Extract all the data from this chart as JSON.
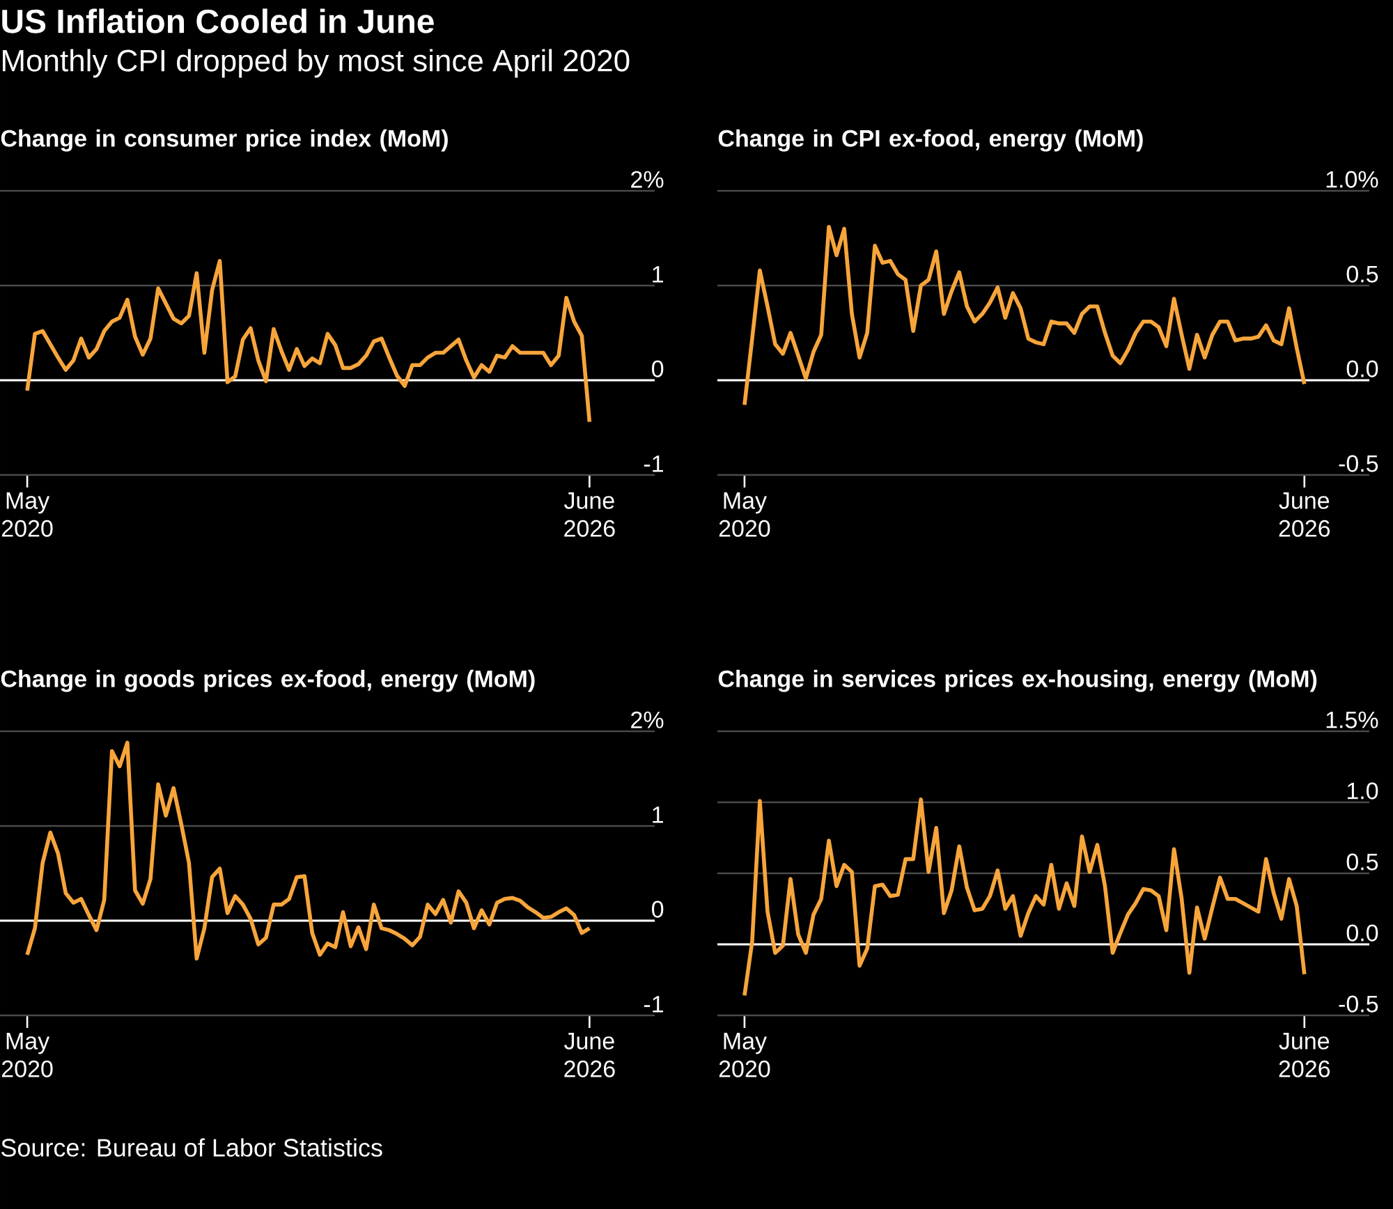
{
  "chart_data": [
    {
      "type": "other",
      "title": "US Inflation Cooled in June",
      "subtitle": "Monthly CPI dropped by most since April 2020",
      "annotations": [
        "Source: Bureau of Labor Statistics"
      ]
    },
    {
      "type": "line",
      "title": "Change in consumer price index (MoM)",
      "grid": "y",
      "marker": "none",
      "line_style": "solid",
      "color": "#f7a53b",
      "x": [
        "2020-05",
        "2020-06",
        "2020-07",
        "2020-08",
        "2020-09",
        "2020-10",
        "2020-11",
        "2020-12",
        "2021-01",
        "2021-02",
        "2021-03",
        "2021-04",
        "2021-05",
        "2021-06",
        "2021-07",
        "2021-08",
        "2021-09",
        "2021-10",
        "2021-11",
        "2021-12",
        "2022-01",
        "2022-02",
        "2022-03",
        "2022-04",
        "2022-05",
        "2022-06",
        "2022-07",
        "2022-08",
        "2022-09",
        "2022-10",
        "2022-11",
        "2022-12",
        "2023-01",
        "2023-02",
        "2023-03",
        "2023-04",
        "2023-05",
        "2023-06",
        "2023-07",
        "2023-08",
        "2023-09",
        "2023-10",
        "2023-11",
        "2023-12",
        "2024-01",
        "2024-02",
        "2024-03",
        "2024-04",
        "2024-05",
        "2024-06",
        "2024-07",
        "2024-08",
        "2024-09",
        "2024-10",
        "2024-11",
        "2024-12",
        "2025-01",
        "2025-02",
        "2025-03",
        "2025-04",
        "2025-05",
        "2025-06",
        "2025-07",
        "2025-08",
        "2025-09",
        "2025-10",
        "2025-11",
        "2025-12",
        "2026-01",
        "2026-02",
        "2026-03",
        "2026-04",
        "2026-05",
        "2026-06"
      ],
      "values": [
        -0.11,
        0.49,
        0.52,
        0.38,
        0.24,
        0.11,
        0.21,
        0.44,
        0.24,
        0.33,
        0.52,
        0.62,
        0.66,
        0.85,
        0.46,
        0.27,
        0.44,
        0.97,
        0.81,
        0.65,
        0.6,
        0.68,
        1.13,
        0.29,
        0.95,
        1.26,
        -0.02,
        0.04,
        0.43,
        0.55,
        0.21,
        -0.01,
        0.54,
        0.31,
        0.11,
        0.33,
        0.15,
        0.23,
        0.18,
        0.49,
        0.37,
        0.13,
        0.13,
        0.17,
        0.26,
        0.41,
        0.44,
        0.24,
        0.05,
        -0.06,
        0.16,
        0.16,
        0.24,
        0.29,
        0.29,
        0.36,
        0.43,
        0.21,
        0.03,
        0.16,
        0.09,
        0.26,
        0.24,
        0.36,
        0.29,
        0.29,
        0.29,
        0.29,
        0.16,
        0.26,
        0.87,
        0.62,
        0.47,
        -0.44
      ],
      "xlim": [
        "2020-01-15",
        "2027-02-15"
      ],
      "xticks": [
        {
          "value": "2020-05",
          "label": "May 2020"
        },
        {
          "value": "2026-06",
          "label": "June 2026"
        }
      ],
      "ylim": [
        -1,
        2
      ],
      "yticks": [
        -1,
        0,
        1,
        {
          "value": 2,
          "label": "2%"
        }
      ],
      "ref_lines": [
        {
          "axis": "y",
          "value": 0,
          "color": "#ffffff"
        }
      ]
    },
    {
      "type": "line",
      "title": "Change in CPI ex-food, energy (MoM)",
      "grid": "y",
      "marker": "none",
      "line_style": "solid",
      "color": "#f7a53b",
      "x": [
        "2020-05",
        "2020-06",
        "2020-07",
        "2020-08",
        "2020-09",
        "2020-10",
        "2020-11",
        "2020-12",
        "2021-01",
        "2021-02",
        "2021-03",
        "2021-04",
        "2021-05",
        "2021-06",
        "2021-07",
        "2021-08",
        "2021-09",
        "2021-10",
        "2021-11",
        "2021-12",
        "2022-01",
        "2022-02",
        "2022-03",
        "2022-04",
        "2022-05",
        "2022-06",
        "2022-07",
        "2022-08",
        "2022-09",
        "2022-10",
        "2022-11",
        "2022-12",
        "2023-01",
        "2023-02",
        "2023-03",
        "2023-04",
        "2023-05",
        "2023-06",
        "2023-07",
        "2023-08",
        "2023-09",
        "2023-10",
        "2023-11",
        "2023-12",
        "2024-01",
        "2024-02",
        "2024-03",
        "2024-04",
        "2024-05",
        "2024-06",
        "2024-07",
        "2024-08",
        "2024-09",
        "2024-10",
        "2024-11",
        "2024-12",
        "2025-01",
        "2025-02",
        "2025-03",
        "2025-04",
        "2025-05",
        "2025-06",
        "2025-07",
        "2025-08",
        "2025-09",
        "2025-10",
        "2025-11",
        "2025-12",
        "2026-01",
        "2026-02",
        "2026-03",
        "2026-04",
        "2026-05",
        "2026-06"
      ],
      "values": [
        -0.13,
        0.22,
        0.58,
        0.39,
        0.19,
        0.14,
        0.25,
        0.13,
        0.01,
        0.15,
        0.24,
        0.81,
        0.66,
        0.8,
        0.35,
        0.12,
        0.25,
        0.71,
        0.62,
        0.63,
        0.56,
        0.53,
        0.26,
        0.5,
        0.53,
        0.68,
        0.35,
        0.47,
        0.57,
        0.39,
        0.31,
        0.35,
        0.41,
        0.49,
        0.33,
        0.46,
        0.38,
        0.22,
        0.2,
        0.19,
        0.31,
        0.3,
        0.3,
        0.25,
        0.35,
        0.39,
        0.39,
        0.25,
        0.13,
        0.09,
        0.16,
        0.25,
        0.31,
        0.31,
        0.28,
        0.18,
        0.43,
        0.24,
        0.06,
        0.24,
        0.12,
        0.24,
        0.31,
        0.31,
        0.21,
        0.22,
        0.22,
        0.23,
        0.29,
        0.21,
        0.19,
        0.38,
        0.17,
        -0.02
      ],
      "xlim": [
        "2020-01-15",
        "2027-02-15"
      ],
      "xticks": [
        {
          "value": "2020-05",
          "label": "May 2020"
        },
        {
          "value": "2026-06",
          "label": "June 2026"
        }
      ],
      "ylim": [
        -0.5,
        1.0
      ],
      "yticks": [
        -0.5,
        {
          "value": 0,
          "label": "0.0"
        },
        0.5,
        {
          "value": 1.0,
          "label": "1.0%"
        }
      ],
      "ref_lines": [
        {
          "axis": "y",
          "value": 0,
          "color": "#ffffff"
        }
      ]
    },
    {
      "type": "line",
      "title": "Change in goods prices ex-food, energy (MoM)",
      "grid": "y",
      "marker": "none",
      "line_style": "solid",
      "color": "#f7a53b",
      "x": [
        "2020-05",
        "2020-06",
        "2020-07",
        "2020-08",
        "2020-09",
        "2020-10",
        "2020-11",
        "2020-12",
        "2021-01",
        "2021-02",
        "2021-03",
        "2021-04",
        "2021-05",
        "2021-06",
        "2021-07",
        "2021-08",
        "2021-09",
        "2021-10",
        "2021-11",
        "2021-12",
        "2022-01",
        "2022-02",
        "2022-03",
        "2022-04",
        "2022-05",
        "2022-06",
        "2022-07",
        "2022-08",
        "2022-09",
        "2022-10",
        "2022-11",
        "2022-12",
        "2023-01",
        "2023-02",
        "2023-03",
        "2023-04",
        "2023-05",
        "2023-06",
        "2023-07",
        "2023-08",
        "2023-09",
        "2023-10",
        "2023-11",
        "2023-12",
        "2024-01",
        "2024-02",
        "2024-03",
        "2024-04",
        "2024-05",
        "2024-06",
        "2024-07",
        "2024-08",
        "2024-09",
        "2024-10",
        "2024-11",
        "2024-12",
        "2025-01",
        "2025-02",
        "2025-03",
        "2025-04",
        "2025-05",
        "2025-06",
        "2025-07",
        "2025-08",
        "2025-09",
        "2025-10",
        "2025-11",
        "2025-12",
        "2026-01",
        "2026-02",
        "2026-03",
        "2026-04",
        "2026-05",
        "2026-06"
      ],
      "values": [
        -0.36,
        -0.08,
        0.61,
        0.93,
        0.71,
        0.29,
        0.19,
        0.23,
        0.06,
        -0.1,
        0.22,
        1.79,
        1.63,
        1.88,
        0.32,
        0.18,
        0.44,
        1.44,
        1.11,
        1.4,
        1.02,
        0.61,
        -0.4,
        -0.08,
        0.46,
        0.55,
        0.08,
        0.26,
        0.17,
        0.02,
        -0.25,
        -0.18,
        0.17,
        0.17,
        0.23,
        0.46,
        0.47,
        -0.13,
        -0.36,
        -0.24,
        -0.28,
        0.09,
        -0.27,
        -0.07,
        -0.3,
        0.17,
        -0.08,
        -0.1,
        -0.14,
        -0.19,
        -0.26,
        -0.17,
        0.17,
        0.07,
        0.22,
        -0.02,
        0.31,
        0.19,
        -0.08,
        0.11,
        -0.04,
        0.19,
        0.23,
        0.24,
        0.21,
        0.14,
        0.09,
        0.03,
        0.04,
        0.09,
        0.13,
        0.06,
        -0.13,
        -0.08
      ],
      "xlim": [
        "2020-01-15",
        "2027-02-15"
      ],
      "xticks": [
        {
          "value": "2020-05",
          "label": "May 2020"
        },
        {
          "value": "2026-06",
          "label": "June 2026"
        }
      ],
      "ylim": [
        -1,
        2
      ],
      "yticks": [
        -1,
        0,
        1,
        {
          "value": 2,
          "label": "2%"
        }
      ],
      "ref_lines": [
        {
          "axis": "y",
          "value": 0,
          "color": "#ffffff"
        }
      ]
    },
    {
      "type": "line",
      "title": "Change in services prices ex-housing, energy (MoM)",
      "grid": "y",
      "marker": "none",
      "line_style": "solid",
      "color": "#f7a53b",
      "x": [
        "2020-05",
        "2020-06",
        "2020-07",
        "2020-08",
        "2020-09",
        "2020-10",
        "2020-11",
        "2020-12",
        "2021-01",
        "2021-02",
        "2021-03",
        "2021-04",
        "2021-05",
        "2021-06",
        "2021-07",
        "2021-08",
        "2021-09",
        "2021-10",
        "2021-11",
        "2021-12",
        "2022-01",
        "2022-02",
        "2022-03",
        "2022-04",
        "2022-05",
        "2022-06",
        "2022-07",
        "2022-08",
        "2022-09",
        "2022-10",
        "2022-11",
        "2022-12",
        "2023-01",
        "2023-02",
        "2023-03",
        "2023-04",
        "2023-05",
        "2023-06",
        "2023-07",
        "2023-08",
        "2023-09",
        "2023-10",
        "2023-11",
        "2023-12",
        "2024-01",
        "2024-02",
        "2024-03",
        "2024-04",
        "2024-05",
        "2024-06",
        "2024-07",
        "2024-08",
        "2024-09",
        "2024-10",
        "2024-11",
        "2024-12",
        "2025-01",
        "2025-02",
        "2025-03",
        "2025-04",
        "2025-05",
        "2025-06",
        "2025-07",
        "2025-08",
        "2025-09",
        "2025-10",
        "2025-11",
        "2025-12",
        "2026-01",
        "2026-02",
        "2026-03",
        "2026-04",
        "2026-05",
        "2026-06"
      ],
      "values": [
        -0.36,
        0.02,
        1.01,
        0.23,
        -0.06,
        -0.01,
        0.46,
        0.07,
        -0.06,
        0.21,
        0.32,
        0.73,
        0.41,
        0.56,
        0.51,
        -0.15,
        -0.03,
        0.41,
        0.42,
        0.34,
        0.35,
        0.6,
        0.6,
        1.02,
        0.51,
        0.82,
        0.22,
        0.38,
        0.69,
        0.4,
        0.24,
        0.25,
        0.34,
        0.52,
        0.25,
        0.34,
        0.06,
        0.22,
        0.34,
        0.28,
        0.56,
        0.25,
        0.43,
        0.27,
        0.76,
        0.51,
        0.7,
        0.41,
        -0.06,
        0.08,
        0.21,
        0.29,
        0.39,
        0.38,
        0.34,
        0.1,
        0.67,
        0.32,
        -0.2,
        0.26,
        0.04,
        0.26,
        0.47,
        0.32,
        0.32,
        0.29,
        0.26,
        0.23,
        0.6,
        0.36,
        0.18,
        0.46,
        0.27,
        -0.21
      ],
      "xlim": [
        "2020-01-15",
        "2027-02-15"
      ],
      "xticks": [
        {
          "value": "2020-05",
          "label": "May 2020"
        },
        {
          "value": "2026-06",
          "label": "June 2026"
        }
      ],
      "ylim": [
        -0.5,
        1.5
      ],
      "yticks": [
        -0.5,
        {
          "value": 0,
          "label": "0.0"
        },
        0.5,
        {
          "value": 1.0,
          "label": "1.0"
        },
        {
          "value": 1.5,
          "label": "1.5%"
        }
      ],
      "ref_lines": [
        {
          "axis": "y",
          "value": 0,
          "color": "#ffffff"
        }
      ]
    }
  ]
}
